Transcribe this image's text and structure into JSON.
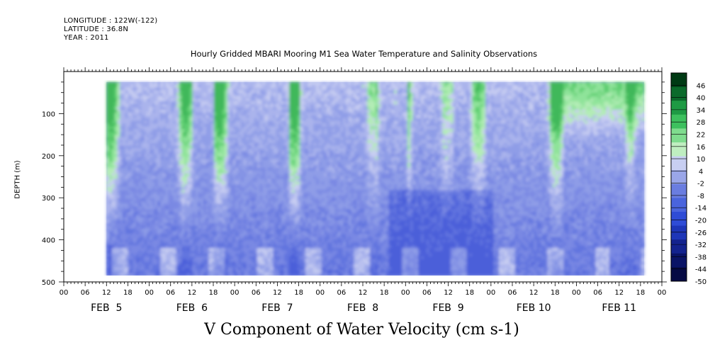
{
  "header": {
    "longitude": "LONGITUDE : 122W(-122)",
    "latitude": "LATITUDE : 36.8N",
    "year": "YEAR : 2011"
  },
  "chart_data": {
    "type": "heatmap",
    "title": "Hourly Gridded MBARI Mooring M1 Sea Water Temperature and Salinity Observations",
    "xlabel": "V Component of Water Velocity (cm s-1)",
    "ylabel": "DEPTH (m)",
    "y_range": [
      500,
      0
    ],
    "y_ticks": [
      100,
      200,
      300,
      400,
      500
    ],
    "x_hour_ticks": [
      "00",
      "06",
      "12",
      "18",
      "00",
      "06",
      "12",
      "18",
      "00",
      "06",
      "12",
      "18",
      "00",
      "06",
      "12",
      "18",
      "00",
      "06",
      "12",
      "18",
      "00",
      "06",
      "12",
      "18",
      "00",
      "06",
      "12",
      "18",
      "00"
    ],
    "x_days": [
      "FEB  5",
      "FEB  6",
      "FEB  7",
      "FEB  8",
      "FEB  9",
      "FEB 10",
      "FEB 11"
    ],
    "colorbar_labels": [
      "46",
      "40",
      "34",
      "28",
      "22",
      "16",
      "10",
      "4",
      "-2",
      "-8",
      "-14",
      "-20",
      "-26",
      "-32",
      "-38",
      "-44",
      "-50"
    ],
    "colorbar_range": [
      -50,
      52
    ],
    "colorbar_colors_top_to_bottom": [
      "#003a14",
      "#0b6a2b",
      "#1e9a44",
      "#3dc05e",
      "#7fdc8e",
      "#bfeec0",
      "#c8cff2",
      "#9aa6e8",
      "#6a7de0",
      "#4a64dd",
      "#2f4cd6",
      "#1e36b8",
      "#13238e",
      "#0a1466",
      "#050a44"
    ],
    "data_start_hour": 12,
    "data_end_hour": 163,
    "data_depth_range": [
      25,
      485
    ],
    "field_summary": "Predominantly negative (blue, about -5 to -25) velocities at depth; positive (green, up to ~20) patches mostly in upper 300 m."
  }
}
